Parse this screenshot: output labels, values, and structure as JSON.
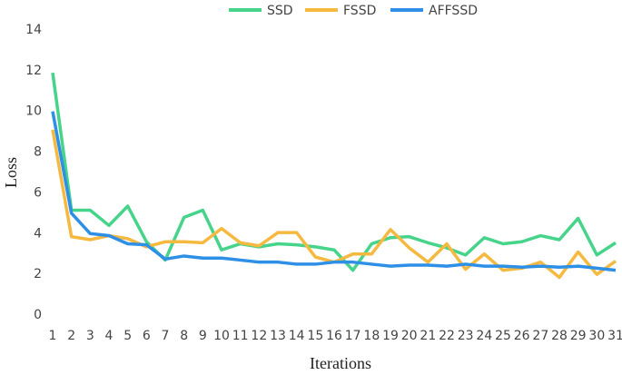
{
  "chart_data": {
    "type": "line",
    "xlabel": "Iterations",
    "ylabel": "Loss",
    "categories": [
      "1",
      "2",
      "3",
      "4",
      "5",
      "6",
      "7",
      "8",
      "9",
      "10",
      "11",
      "12",
      "13",
      "14",
      "15",
      "16",
      "17",
      "18",
      "19",
      "20",
      "21",
      "22",
      "23",
      "24",
      "25",
      "26",
      "27",
      "28",
      "29",
      "30",
      "31"
    ],
    "series": [
      {
        "name": "SSD",
        "color": "#45d48a",
        "values": [
          11.9,
          5.15,
          5.15,
          4.4,
          5.35,
          3.6,
          2.7,
          4.8,
          5.15,
          3.2,
          3.5,
          3.35,
          3.5,
          3.45,
          3.35,
          3.2,
          2.2,
          3.5,
          3.8,
          3.85,
          3.55,
          3.3,
          2.95,
          3.8,
          3.5,
          3.6,
          3.9,
          3.7,
          4.75,
          2.95,
          3.55
        ]
      },
      {
        "name": "FSSD",
        "color": "#f6b940",
        "values": [
          9.1,
          3.85,
          3.7,
          3.9,
          3.75,
          3.35,
          3.6,
          3.6,
          3.55,
          4.25,
          3.55,
          3.4,
          4.05,
          4.05,
          2.85,
          2.6,
          3.0,
          3.0,
          4.2,
          3.3,
          2.6,
          3.5,
          2.25,
          3.0,
          2.2,
          2.3,
          2.6,
          1.85,
          3.1,
          2.0,
          2.65
        ]
      },
      {
        "name": "AFFSSD",
        "color": "#2e8fe6",
        "values": [
          10.0,
          5.0,
          4.0,
          3.9,
          3.5,
          3.45,
          2.75,
          2.9,
          2.8,
          2.8,
          2.7,
          2.6,
          2.6,
          2.5,
          2.5,
          2.6,
          2.6,
          2.5,
          2.4,
          2.45,
          2.45,
          2.4,
          2.5,
          2.4,
          2.4,
          2.35,
          2.4,
          2.35,
          2.4,
          2.3,
          2.2
        ]
      }
    ],
    "ylim": [
      0,
      14
    ],
    "yticks": [
      0,
      2,
      4,
      6,
      8,
      10,
      12,
      14
    ],
    "grid": false,
    "legend": "top"
  }
}
